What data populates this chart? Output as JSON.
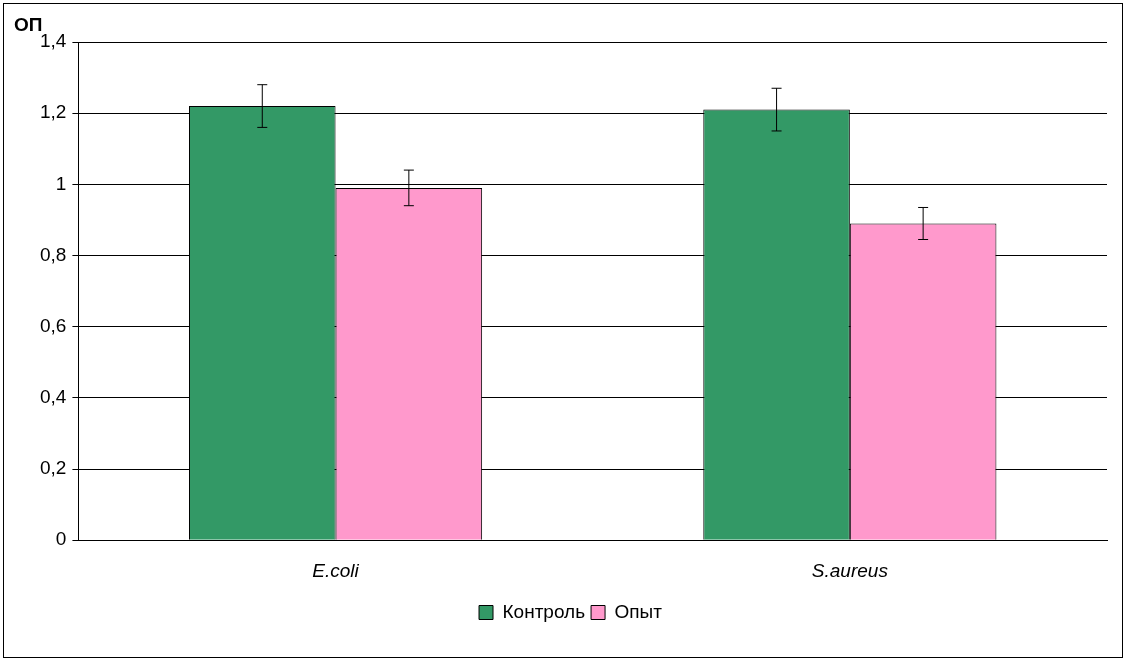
{
  "chart_data": {
    "type": "bar",
    "ylabel": "ОП",
    "categories": [
      "E.coli",
      "S.aureus"
    ],
    "series": [
      {
        "name": "Контроль",
        "color": "#339966",
        "values": [
          1.22,
          1.21
        ],
        "errors": [
          0.06,
          0.06
        ]
      },
      {
        "name": "Опыт",
        "color": "#ff99cc",
        "values": [
          0.99,
          0.89
        ],
        "errors": [
          0.05,
          0.045
        ]
      }
    ],
    "ylim": [
      0,
      1.4
    ],
    "yticks": [
      0,
      {
        "value": 0.2,
        "label": "0,2"
      },
      {
        "value": 0.4,
        "label": "0,4"
      },
      {
        "value": 0.6,
        "label": "0,6"
      },
      {
        "value": 0.8,
        "label": "0,8"
      },
      1,
      {
        "value": 1.2,
        "label": "1,2"
      },
      {
        "value": 1.4,
        "label": "1,4"
      }
    ],
    "grid": "y",
    "legend": "bottom"
  }
}
